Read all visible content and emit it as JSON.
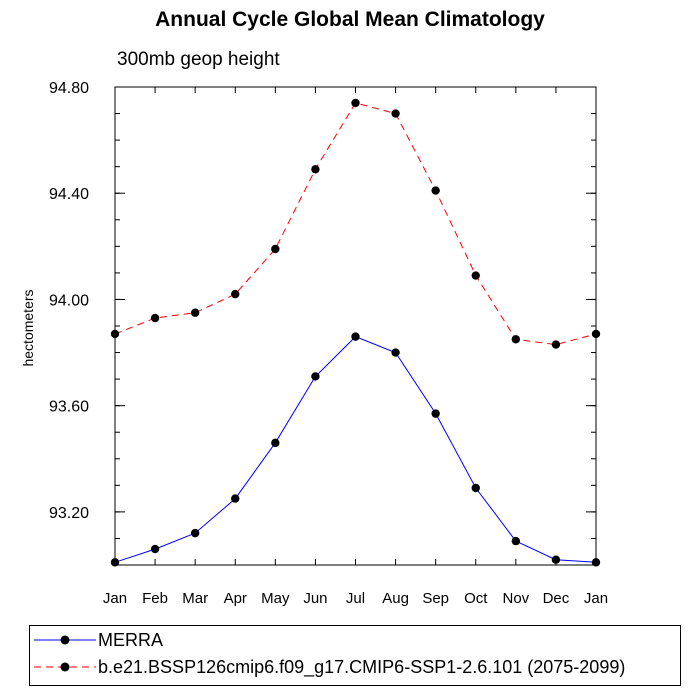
{
  "chart_data": {
    "type": "line",
    "title": "Annual Cycle Global Mean Climatology",
    "subtitle": "300mb geop height",
    "xlabel": "",
    "ylabel": "hectometers",
    "categories": [
      "Jan",
      "Feb",
      "Mar",
      "Apr",
      "May",
      "Jun",
      "Jul",
      "Aug",
      "Sep",
      "Oct",
      "Nov",
      "Dec",
      "Jan"
    ],
    "ylim": [
      93.0,
      94.8
    ],
    "yticks": [
      "93.20",
      "93.60",
      "94.00",
      "94.40",
      "94.80"
    ],
    "grid": false,
    "legend_position": "bottom",
    "series": [
      {
        "name": "MERRA",
        "color": "#0000ff",
        "line_style": "solid",
        "marker": "filled-circle",
        "values": [
          93.01,
          93.06,
          93.12,
          93.25,
          93.46,
          93.71,
          93.86,
          93.8,
          93.57,
          93.29,
          93.09,
          93.02,
          93.01
        ]
      },
      {
        "name": "b.e21.BSSP126cmip6.f09_g17.CMIP6-SSP1-2.6.101 (2075-2099)",
        "color": "#ff0000",
        "line_style": "dashed",
        "marker": "filled-circle",
        "values": [
          93.87,
          93.93,
          93.95,
          94.02,
          94.19,
          94.49,
          94.74,
          94.7,
          94.41,
          94.09,
          93.85,
          93.83,
          93.87
        ]
      }
    ]
  }
}
